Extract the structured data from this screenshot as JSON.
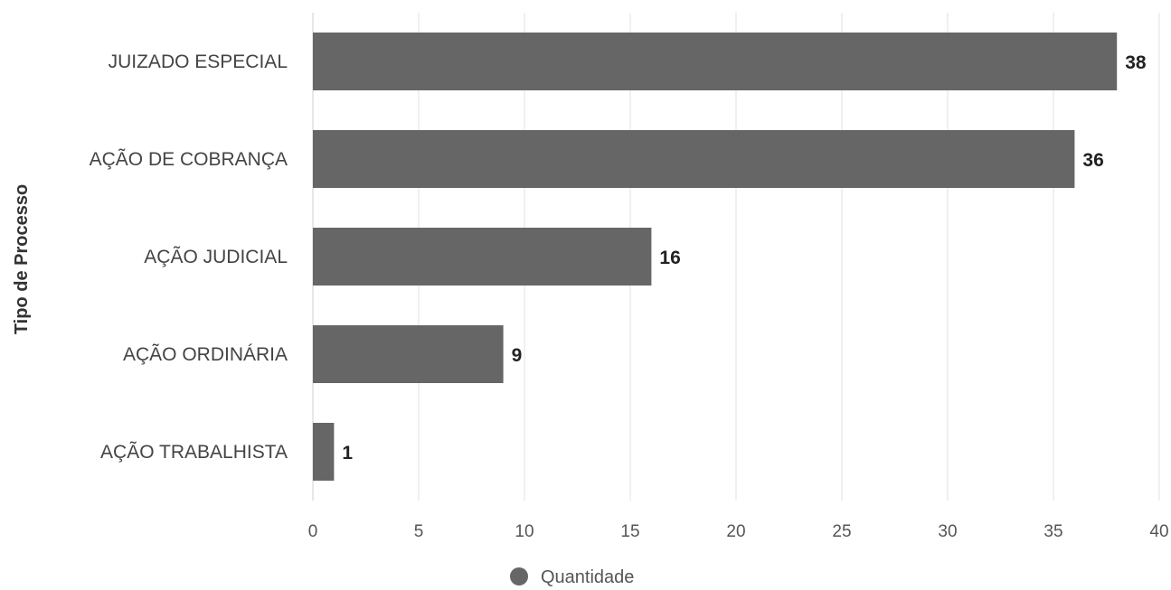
{
  "chart_data": {
    "type": "bar",
    "orientation": "horizontal",
    "categories": [
      "JUIZADO ESPECIAL",
      "AÇÃO DE COBRANÇA",
      "AÇÃO JUDICIAL",
      "AÇÃO ORDINÁRIA",
      "AÇÃO TRABALHISTA"
    ],
    "series": [
      {
        "name": "Quantidade",
        "values": [
          38,
          36,
          16,
          9,
          1
        ]
      }
    ],
    "ylabel": "Tipo de Processo",
    "xlabel": "",
    "xlim": [
      0,
      40
    ],
    "xticks": [
      "0",
      "5",
      "10",
      "15",
      "20",
      "25",
      "30",
      "35",
      "40"
    ],
    "grid": true,
    "legend_position": "bottom",
    "data_labels": [
      "38",
      "36",
      "16",
      "9",
      "1"
    ],
    "colors": {
      "bar": "#666666",
      "grid": "#e0e0e0"
    }
  }
}
